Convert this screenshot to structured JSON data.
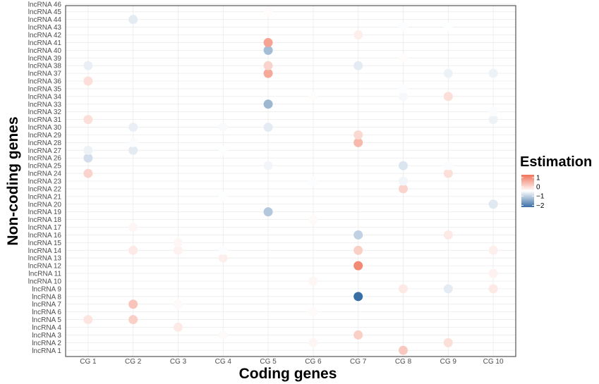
{
  "chart_data": {
    "type": "scatter",
    "xlabel": "Coding genes",
    "ylabel": "Non-coding genes",
    "categories_x": [
      "CG 1",
      "CG 2",
      "CG 3",
      "CG 4",
      "CG 5",
      "CG 6",
      "CG 7",
      "CG 8",
      "CG 9",
      "CG 10"
    ],
    "categories_y": [
      "lncRNA 1",
      "lncRNA 2",
      "lncRNA 3",
      "lncRNA 4",
      "lncRNA 5",
      "lncRNA 6",
      "lncRNA 7",
      "lncRNA 8",
      "lncRNA 9",
      "lncRNA 10",
      "lncRNA 11",
      "lncRNA 12",
      "lncRNA 13",
      "lncRNA 14",
      "lncRNA 15",
      "lncRNA 16",
      "lncRNA 17",
      "lncRNA 18",
      "lncRNA 19",
      "lncRNA 20",
      "lncRNA 21",
      "lncRNA 22",
      "lncRNA 23",
      "lncRNA 24",
      "lncRNA 25",
      "lncRNA 26",
      "lncRNA 27",
      "lncRNA 28",
      "lncRNA 29",
      "lncRNA 30",
      "lncRNA 31",
      "lncRNA 32",
      "lncRNA 33",
      "lncRNA 34",
      "lncRNA 35",
      "lncRNA 36",
      "lncRNA 37",
      "lncRNA 38",
      "lncRNA 39",
      "lncRNA 40",
      "lncRNA 41",
      "lncRNA 42",
      "lncRNA 43",
      "lncRNA 44",
      "lncRNA 45",
      "lncRNA 46"
    ],
    "color_scale": {
      "low": "#3a6fa6",
      "mid": "#ffffff",
      "high": "#f0735a",
      "min": -2.2,
      "max": 1.3
    },
    "legend": {
      "title": "Estimation",
      "ticks": [
        "1",
        "0",
        "−1",
        "−2"
      ],
      "tick_values": [
        1,
        0,
        -1,
        -2
      ],
      "position": "right"
    },
    "grid": true,
    "points": [
      {
        "x": "CG 1",
        "y": "lncRNA 5",
        "v": 0.25
      },
      {
        "x": "CG 1",
        "y": "lncRNA 24",
        "v": 0.4
      },
      {
        "x": "CG 1",
        "y": "lncRNA 26",
        "v": -0.5
      },
      {
        "x": "CG 1",
        "y": "lncRNA 27",
        "v": -0.2
      },
      {
        "x": "CG 1",
        "y": "lncRNA 31",
        "v": 0.3
      },
      {
        "x": "CG 1",
        "y": "lncRNA 36",
        "v": 0.3
      },
      {
        "x": "CG 1",
        "y": "lncRNA 38",
        "v": -0.25
      },
      {
        "x": "CG 2",
        "y": "lncRNA 5",
        "v": 0.45
      },
      {
        "x": "CG 2",
        "y": "lncRNA 7",
        "v": 0.55
      },
      {
        "x": "CG 2",
        "y": "lncRNA 14",
        "v": 0.2
      },
      {
        "x": "CG 2",
        "y": "lncRNA 17",
        "v": 0.08
      },
      {
        "x": "CG 2",
        "y": "lncRNA 27",
        "v": -0.3
      },
      {
        "x": "CG 2",
        "y": "lncRNA 28",
        "v": -0.05
      },
      {
        "x": "CG 2",
        "y": "lncRNA 30",
        "v": -0.25
      },
      {
        "x": "CG 2",
        "y": "lncRNA 44",
        "v": -0.3
      },
      {
        "x": "CG 3",
        "y": "lncRNA 4",
        "v": 0.2
      },
      {
        "x": "CG 3",
        "y": "lncRNA 7",
        "v": 0.05
      },
      {
        "x": "CG 3",
        "y": "lncRNA 14",
        "v": 0.12
      },
      {
        "x": "CG 3",
        "y": "lncRNA 15",
        "v": 0.08
      },
      {
        "x": "CG 4",
        "y": "lncRNA 3",
        "v": 0.05
      },
      {
        "x": "CG 4",
        "y": "lncRNA 13",
        "v": 0.15
      },
      {
        "x": "CG 4",
        "y": "lncRNA 14",
        "v": -0.03
      },
      {
        "x": "CG 4",
        "y": "lncRNA 21",
        "v": -0.02
      },
      {
        "x": "CG 4",
        "y": "lncRNA 27",
        "v": -0.02
      },
      {
        "x": "CG 4",
        "y": "lncRNA 30",
        "v": -0.08
      },
      {
        "x": "CG 5",
        "y": "lncRNA 19",
        "v": -0.85
      },
      {
        "x": "CG 5",
        "y": "lncRNA 25",
        "v": -0.15
      },
      {
        "x": "CG 5",
        "y": "lncRNA 30",
        "v": -0.3
      },
      {
        "x": "CG 5",
        "y": "lncRNA 33",
        "v": -1.1
      },
      {
        "x": "CG 5",
        "y": "lncRNA 37",
        "v": 0.8
      },
      {
        "x": "CG 5",
        "y": "lncRNA 38",
        "v": 0.4
      },
      {
        "x": "CG 5",
        "y": "lncRNA 40",
        "v": -1.0
      },
      {
        "x": "CG 5",
        "y": "lncRNA 41",
        "v": 0.85
      },
      {
        "x": "CG 5",
        "y": "lncRNA 45",
        "v": 0.03
      },
      {
        "x": "CG 6",
        "y": "lncRNA 2",
        "v": 0.08
      },
      {
        "x": "CG 6",
        "y": "lncRNA 6",
        "v": 0.05
      },
      {
        "x": "CG 6",
        "y": "lncRNA 10",
        "v": 0.08
      },
      {
        "x": "CG 6",
        "y": "lncRNA 18",
        "v": 0.05
      },
      {
        "x": "CG 6",
        "y": "lncRNA 23",
        "v": -0.03
      },
      {
        "x": "CG 6",
        "y": "lncRNA 34",
        "v": 0.02
      },
      {
        "x": "CG 7",
        "y": "lncRNA 3",
        "v": 0.45
      },
      {
        "x": "CG 7",
        "y": "lncRNA 8",
        "v": -2.2
      },
      {
        "x": "CG 7",
        "y": "lncRNA 12",
        "v": 1.1
      },
      {
        "x": "CG 7",
        "y": "lncRNA 14",
        "v": 0.45
      },
      {
        "x": "CG 7",
        "y": "lncRNA 16",
        "v": -0.7
      },
      {
        "x": "CG 7",
        "y": "lncRNA 28",
        "v": 0.65
      },
      {
        "x": "CG 7",
        "y": "lncRNA 29",
        "v": 0.35
      },
      {
        "x": "CG 7",
        "y": "lncRNA 38",
        "v": -0.3
      },
      {
        "x": "CG 7",
        "y": "lncRNA 42",
        "v": 0.15
      },
      {
        "x": "CG 8",
        "y": "lncRNA 1",
        "v": 0.5
      },
      {
        "x": "CG 8",
        "y": "lncRNA 9",
        "v": 0.2
      },
      {
        "x": "CG 8",
        "y": "lncRNA 22",
        "v": 0.4
      },
      {
        "x": "CG 8",
        "y": "lncRNA 23",
        "v": -0.15
      },
      {
        "x": "CG 8",
        "y": "lncRNA 25",
        "v": -0.4
      },
      {
        "x": "CG 8",
        "y": "lncRNA 34",
        "v": -0.1
      },
      {
        "x": "CG 8",
        "y": "lncRNA 35",
        "v": -0.03
      },
      {
        "x": "CG 8",
        "y": "lncRNA 39",
        "v": 0.03
      },
      {
        "x": "CG 8",
        "y": "lncRNA 43",
        "v": -0.03
      },
      {
        "x": "CG 9",
        "y": "lncRNA 2",
        "v": 0.3
      },
      {
        "x": "CG 9",
        "y": "lncRNA 9",
        "v": -0.3
      },
      {
        "x": "CG 9",
        "y": "lncRNA 16",
        "v": 0.2
      },
      {
        "x": "CG 9",
        "y": "lncRNA 24",
        "v": 0.3
      },
      {
        "x": "CG 9",
        "y": "lncRNA 25",
        "v": -0.05
      },
      {
        "x": "CG 9",
        "y": "lncRNA 34",
        "v": 0.3
      },
      {
        "x": "CG 9",
        "y": "lncRNA 37",
        "v": -0.2
      },
      {
        "x": "CG 9",
        "y": "lncRNA 43",
        "v": -0.02
      },
      {
        "x": "CG 10",
        "y": "lncRNA 9",
        "v": 0.2
      },
      {
        "x": "CG 10",
        "y": "lncRNA 11",
        "v": 0.12
      },
      {
        "x": "CG 10",
        "y": "lncRNA 14",
        "v": 0.15
      },
      {
        "x": "CG 10",
        "y": "lncRNA 20",
        "v": -0.35
      },
      {
        "x": "CG 10",
        "y": "lncRNA 31",
        "v": -0.2
      },
      {
        "x": "CG 10",
        "y": "lncRNA 32",
        "v": -0.05
      },
      {
        "x": "CG 10",
        "y": "lncRNA 37",
        "v": -0.2
      }
    ]
  }
}
